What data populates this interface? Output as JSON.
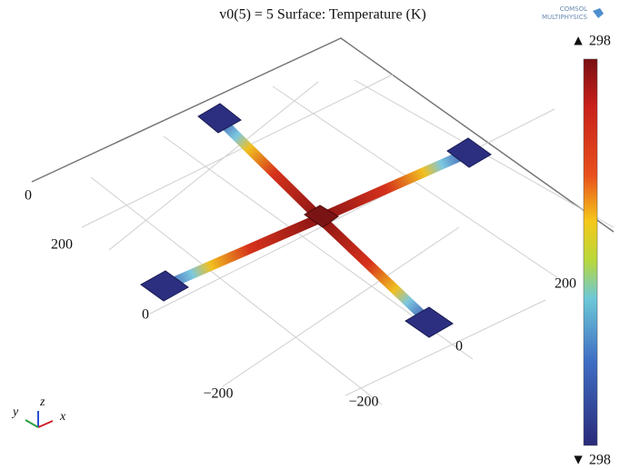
{
  "title": "v0(5) = 5 Surface: Temperature (K)",
  "logo": [
    "COMSOL",
    "MULTIPHYSICS"
  ],
  "colorbar": {
    "max_label": "▲ 298",
    "min_label": "▼ 298"
  },
  "axis_labels": [
    "0",
    "200",
    "0",
    "−200",
    "−200",
    "0",
    "200"
  ],
  "triad": {
    "x": "x",
    "y": "y",
    "z": "z"
  }
}
